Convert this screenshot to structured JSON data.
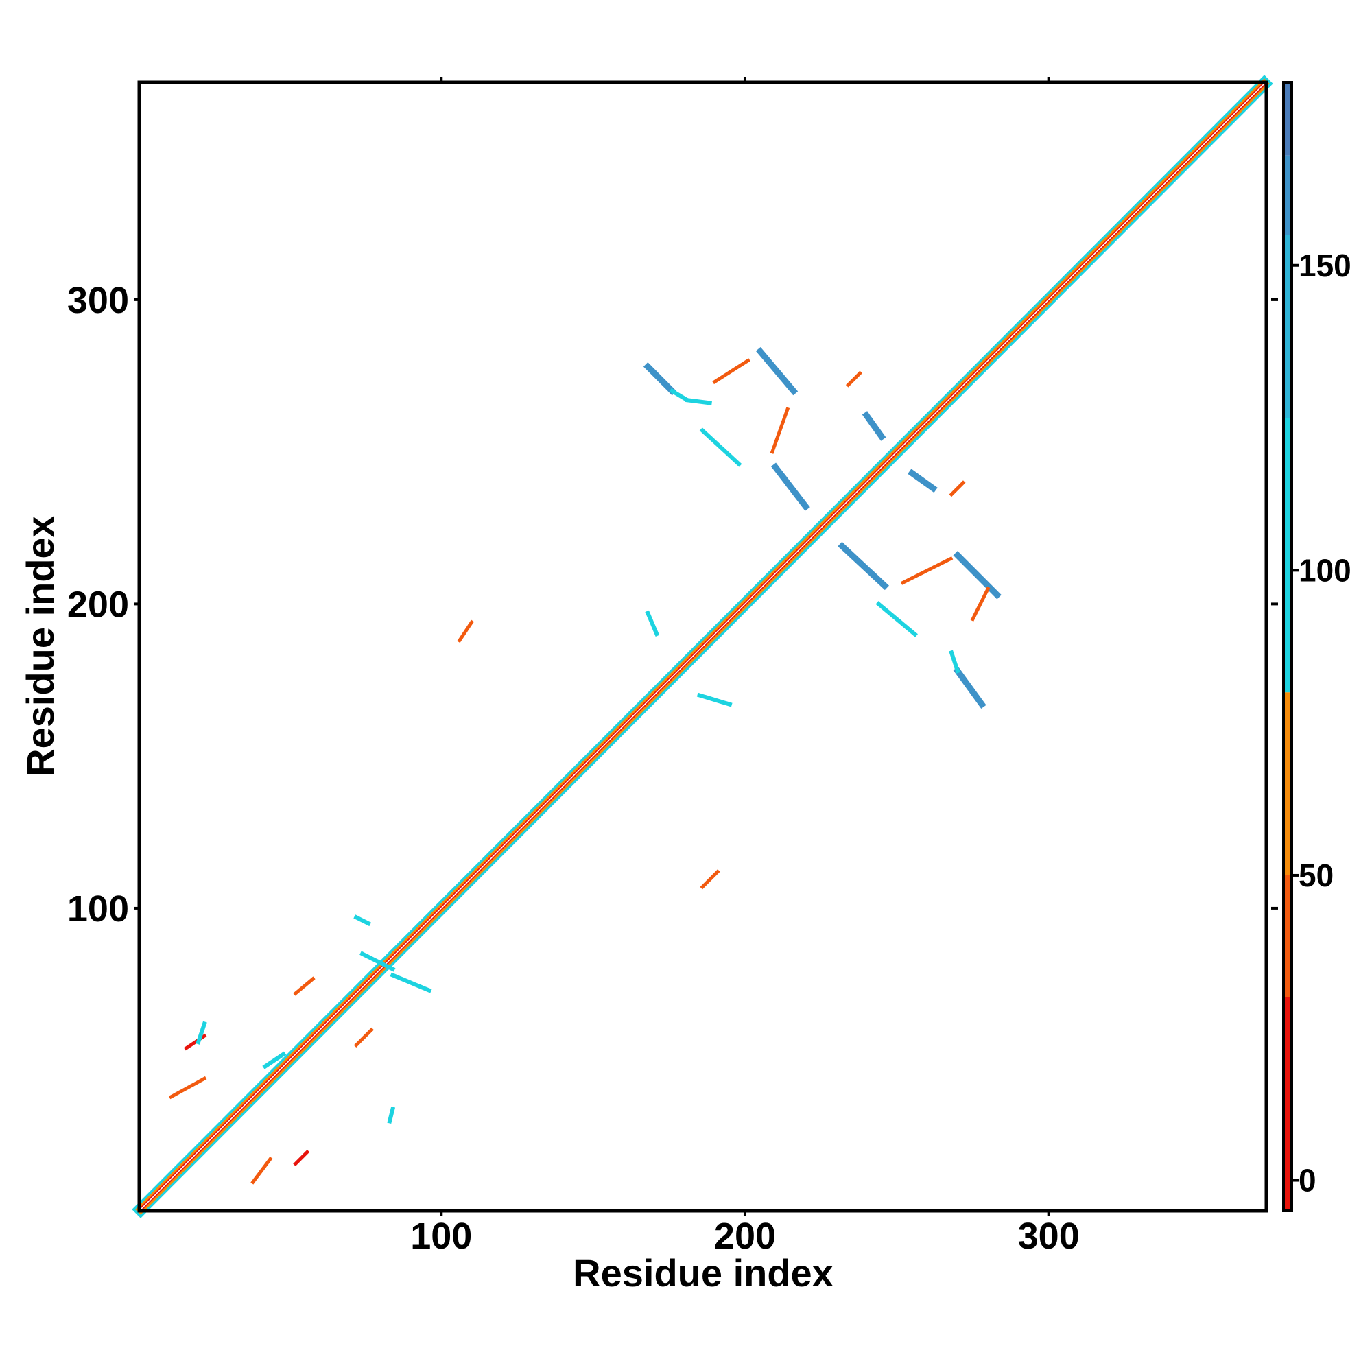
{
  "chart_data": {
    "type": "heatmap",
    "title": "",
    "xlabel": "Residue index",
    "ylabel": "Residue index",
    "xlim": [
      1,
      371
    ],
    "ylim": [
      1,
      371
    ],
    "xticks": [
      100,
      200,
      300
    ],
    "yticks": [
      100,
      200,
      300
    ],
    "grid": false,
    "colorbar": {
      "range": [
        -5,
        180
      ],
      "ticks": [
        0,
        50,
        100,
        150
      ],
      "bands": [
        {
          "from": -5,
          "to": 30,
          "color": "#e8140c"
        },
        {
          "from": 30,
          "to": 50,
          "color": "#f25a0f"
        },
        {
          "from": 50,
          "to": 80,
          "color": "#f58b0a"
        },
        {
          "from": 80,
          "to": 125,
          "color": "#1dd3e0"
        },
        {
          "from": 125,
          "to": 155,
          "color": "#2fb4d6"
        },
        {
          "from": 155,
          "to": 168,
          "color": "#3e92c8"
        },
        {
          "from": 168,
          "to": 180,
          "color": "#4a7bb8"
        }
      ]
    },
    "diagonal": {
      "from": 1,
      "to": 371,
      "center_value": 20,
      "edge_value": 100
    },
    "segments": [
      {
        "x1": 168,
        "y1": 278,
        "x2": 176,
        "y2": 270,
        "value": 165
      },
      {
        "x1": 176,
        "y1": 270,
        "x2": 181,
        "y2": 267,
        "value": 100
      },
      {
        "x1": 181,
        "y1": 267,
        "x2": 189,
        "y2": 266,
        "value": 100
      },
      {
        "x1": 205,
        "y1": 283,
        "x2": 216,
        "y2": 270,
        "value": 165
      },
      {
        "x1": 190,
        "y1": 273,
        "x2": 201,
        "y2": 280,
        "value": 40
      },
      {
        "x1": 210,
        "y1": 245,
        "x2": 220,
        "y2": 232,
        "value": 165
      },
      {
        "x1": 214,
        "y1": 264,
        "x2": 209,
        "y2": 250,
        "value": 45
      },
      {
        "x1": 186,
        "y1": 257,
        "x2": 198,
        "y2": 246,
        "value": 100
      },
      {
        "x1": 232,
        "y1": 219,
        "x2": 246,
        "y2": 206,
        "value": 165
      },
      {
        "x1": 270,
        "y1": 216,
        "x2": 283,
        "y2": 203,
        "value": 165
      },
      {
        "x1": 252,
        "y1": 207,
        "x2": 268,
        "y2": 215,
        "value": 45
      },
      {
        "x1": 244,
        "y1": 200,
        "x2": 256,
        "y2": 190,
        "value": 100
      },
      {
        "x1": 270,
        "y1": 178,
        "x2": 278,
        "y2": 167,
        "value": 165
      },
      {
        "x1": 268,
        "y1": 184,
        "x2": 270,
        "y2": 178,
        "value": 100
      },
      {
        "x1": 275,
        "y1": 195,
        "x2": 280,
        "y2": 205,
        "value": 45
      },
      {
        "x1": 240,
        "y1": 262,
        "x2": 245,
        "y2": 255,
        "value": 155
      },
      {
        "x1": 255,
        "y1": 243,
        "x2": 262,
        "y2": 238,
        "value": 155
      },
      {
        "x1": 268,
        "y1": 236,
        "x2": 272,
        "y2": 240,
        "value": 45
      },
      {
        "x1": 234,
        "y1": 272,
        "x2": 238,
        "y2": 276,
        "value": 45
      },
      {
        "x1": 106,
        "y1": 188,
        "x2": 110,
        "y2": 194,
        "value": 45
      },
      {
        "x1": 186,
        "y1": 107,
        "x2": 191,
        "y2": 112,
        "value": 45
      },
      {
        "x1": 185,
        "y1": 170,
        "x2": 195,
        "y2": 167,
        "value": 100
      },
      {
        "x1": 168,
        "y1": 197,
        "x2": 171,
        "y2": 190,
        "value": 100
      },
      {
        "x1": 74,
        "y1": 85,
        "x2": 84,
        "y2": 80,
        "value": 100
      },
      {
        "x1": 84,
        "y1": 78,
        "x2": 96,
        "y2": 73,
        "value": 100
      },
      {
        "x1": 72,
        "y1": 97,
        "x2": 76,
        "y2": 95,
        "value": 100
      },
      {
        "x1": 52,
        "y1": 72,
        "x2": 58,
        "y2": 77,
        "value": 40
      },
      {
        "x1": 72,
        "y1": 55,
        "x2": 77,
        "y2": 60,
        "value": 40
      },
      {
        "x1": 16,
        "y1": 54,
        "x2": 22,
        "y2": 58,
        "value": 15
      },
      {
        "x1": 11,
        "y1": 38,
        "x2": 22,
        "y2": 44,
        "value": 40
      },
      {
        "x1": 38,
        "y1": 10,
        "x2": 44,
        "y2": 18,
        "value": 45
      },
      {
        "x1": 52,
        "y1": 16,
        "x2": 56,
        "y2": 20,
        "value": 15
      },
      {
        "x1": 42,
        "y1": 48,
        "x2": 48,
        "y2": 52,
        "value": 100
      },
      {
        "x1": 22,
        "y1": 62,
        "x2": 20,
        "y2": 56,
        "value": 100
      },
      {
        "x1": 83,
        "y1": 30,
        "x2": 84,
        "y2": 34,
        "value": 100
      }
    ]
  }
}
